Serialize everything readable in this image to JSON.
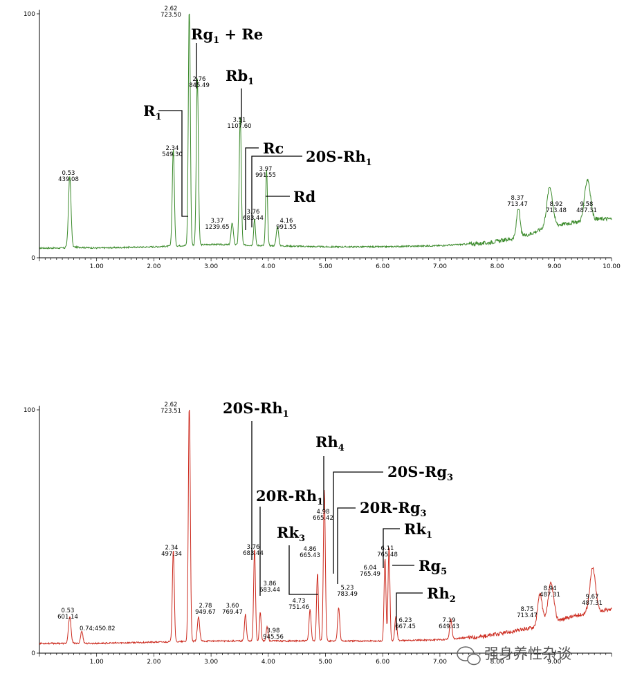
{
  "chart_data": [
    {
      "type": "line",
      "title": "",
      "xlabel": "",
      "ylabel": "",
      "color": "#3a8a2a",
      "xlim": [
        0,
        10
      ],
      "ylim": [
        0,
        100
      ],
      "y_ticks": [
        {
          "v": 0,
          "label": "0"
        },
        {
          "v": 100,
          "label": "100"
        }
      ],
      "x_ticks": [
        {
          "v": 1,
          "label": "1.00"
        },
        {
          "v": 2,
          "label": "2.00"
        },
        {
          "v": 3,
          "label": "3.00"
        },
        {
          "v": 4,
          "label": "4.00"
        },
        {
          "v": 5,
          "label": "5.00"
        },
        {
          "v": 6,
          "label": "6.00"
        },
        {
          "v": 7,
          "label": "7.00"
        },
        {
          "v": 8,
          "label": "8.00"
        },
        {
          "v": 9,
          "label": "9.00"
        },
        {
          "v": 10,
          "label": "10.00"
        }
      ],
      "baseline": [
        [
          0,
          4
        ],
        [
          0.5,
          4.5
        ],
        [
          1,
          4
        ],
        [
          2,
          4.5
        ],
        [
          2.5,
          5
        ],
        [
          3,
          5.5
        ],
        [
          4,
          5
        ],
        [
          5,
          4.5
        ],
        [
          6,
          4.5
        ],
        [
          7,
          5
        ],
        [
          7.8,
          6
        ],
        [
          8.3,
          8
        ],
        [
          8.6,
          10
        ],
        [
          8.9,
          13
        ],
        [
          9.2,
          14
        ],
        [
          9.5,
          15
        ],
        [
          9.8,
          16
        ],
        [
          10,
          16
        ]
      ],
      "peaks": [
        {
          "rt": 0.53,
          "mz": "439.08",
          "rt_label": "0.53",
          "h": 29,
          "w": 0.022
        },
        {
          "rt": 2.34,
          "mz": "549.30",
          "rt_label": "2.34",
          "h": 40,
          "w": 0.018
        },
        {
          "rt": 2.62,
          "mz": "723.50",
          "rt_label": "2.62",
          "h": 100,
          "w": 0.017
        },
        {
          "rt": 2.76,
          "mz": "845.49",
          "rt_label": "2.76",
          "h": 69,
          "w": 0.018
        },
        {
          "rt": 3.37,
          "mz": "1239.65",
          "rt_label": "3.37",
          "h": 9,
          "w": 0.02
        },
        {
          "rt": 3.51,
          "mz": "1107.60",
          "rt_label": "3.51",
          "h": 53,
          "w": 0.018
        },
        {
          "rt": 3.76,
          "mz": "683.44",
          "rt_label": "3.76",
          "h": 11,
          "w": 0.015
        },
        {
          "rt": 3.97,
          "mz": "991.55",
          "rt_label": "3.97",
          "h": 31,
          "w": 0.016
        },
        {
          "rt": 4.16,
          "mz": "991.55",
          "rt_label": "4.16",
          "h": 8,
          "w": 0.02
        },
        {
          "rt": 8.37,
          "mz": "713.47",
          "rt_label": "8.37",
          "h": 12,
          "w": 0.03
        },
        {
          "rt": 8.92,
          "mz": "713.48",
          "rt_label": "8.92",
          "h": 16,
          "w": 0.05
        },
        {
          "rt": 9.58,
          "mz": "487.31",
          "rt_label": "9.58",
          "h": 17,
          "w": 0.05
        }
      ],
      "compounds": [
        {
          "name": "R",
          "sub": "1"
        },
        {
          "name": "Rg",
          "sub": "1",
          "suffix": " + Re"
        },
        {
          "name": "Rb",
          "sub": "1"
        },
        {
          "name": "Rc"
        },
        {
          "name": "20S-Rh",
          "sub": "1"
        },
        {
          "name": "Rd"
        }
      ]
    },
    {
      "type": "line",
      "title": "",
      "xlabel": "",
      "ylabel": "",
      "color": "#cc2a1e",
      "xlim": [
        0,
        10
      ],
      "ylim": [
        0,
        100
      ],
      "y_ticks": [
        {
          "v": 0,
          "label": "0"
        },
        {
          "v": 100,
          "label": "100"
        }
      ],
      "x_ticks": [
        {
          "v": 1,
          "label": "1.00"
        },
        {
          "v": 2,
          "label": "2.00"
        },
        {
          "v": 3,
          "label": "3.00"
        },
        {
          "v": 4,
          "label": "4.00"
        },
        {
          "v": 5,
          "label": "5.00"
        },
        {
          "v": 6,
          "label": "6.00"
        },
        {
          "v": 7,
          "label": "7.00"
        },
        {
          "v": 8,
          "label": "8.00"
        },
        {
          "v": 9,
          "label": "9.00"
        }
      ],
      "baseline": [
        [
          0,
          4
        ],
        [
          1,
          4
        ],
        [
          2,
          4.5
        ],
        [
          3,
          5
        ],
        [
          4,
          5
        ],
        [
          5,
          5
        ],
        [
          6,
          5
        ],
        [
          7,
          5.5
        ],
        [
          7.8,
          7
        ],
        [
          8.3,
          9
        ],
        [
          8.7,
          11
        ],
        [
          9,
          13
        ],
        [
          9.3,
          15
        ],
        [
          9.7,
          17
        ],
        [
          10,
          18
        ]
      ],
      "peaks": [
        {
          "rt": 0.53,
          "mz": "601.14",
          "rt_label": "0.53",
          "h": 11,
          "w": 0.022
        },
        {
          "rt": 0.74,
          "mz": "450.82",
          "rt_label": "0.74",
          "h": 5,
          "w": 0.02
        },
        {
          "rt": 2.34,
          "mz": "497.34",
          "rt_label": "2.34",
          "h": 38,
          "w": 0.017
        },
        {
          "rt": 2.62,
          "mz": "723.51",
          "rt_label": "2.62",
          "h": 100,
          "w": 0.017
        },
        {
          "rt": 2.78,
          "mz": "949.67",
          "rt_label": "2.78",
          "h": 10,
          "w": 0.02
        },
        {
          "rt": 3.6,
          "mz": "769.47",
          "rt_label": "3.60",
          "h": 11,
          "w": 0.017
        },
        {
          "rt": 3.76,
          "mz": "683.44",
          "rt_label": "3.76",
          "h": 38,
          "w": 0.016
        },
        {
          "rt": 3.86,
          "mz": "683.44",
          "rt_label": "3.86",
          "h": 12,
          "w": 0.015
        },
        {
          "rt": 3.98,
          "mz": "945.56",
          "rt_label": "3.98",
          "h": 6,
          "w": 0.016
        },
        {
          "rt": 4.73,
          "mz": "751.46",
          "rt_label": "4.73",
          "h": 13,
          "w": 0.018
        },
        {
          "rt": 4.86,
          "mz": "665.43",
          "rt_label": "4.86",
          "h": 28,
          "w": 0.016
        },
        {
          "rt": 4.98,
          "mz": "665.42",
          "rt_label": "4.98",
          "h": 62,
          "w": 0.017
        },
        {
          "rt": 5.23,
          "mz": "783.49",
          "rt_label": "5.23",
          "h": 14,
          "w": 0.018
        },
        {
          "rt": 6.04,
          "mz": "765.49",
          "rt_label": "6.04",
          "h": 34,
          "w": 0.016
        },
        {
          "rt": 6.11,
          "mz": "765.48",
          "rt_label": "6.11",
          "h": 39,
          "w": 0.016
        },
        {
          "rt": 6.23,
          "mz": "667.45",
          "rt_label": "6.23",
          "h": 10,
          "w": 0.018
        },
        {
          "rt": 7.19,
          "mz": "649.43",
          "rt_label": "7.19",
          "h": 8,
          "w": 0.02
        },
        {
          "rt": 8.75,
          "mz": "713.47",
          "rt_label": "8.75",
          "h": 13,
          "w": 0.04
        },
        {
          "rt": 8.94,
          "mz": "487.31",
          "rt_label": "8.94",
          "h": 16,
          "w": 0.05
        },
        {
          "rt": 9.67,
          "mz": "487.31",
          "rt_label": "9.67",
          "h": 18,
          "w": 0.05
        }
      ],
      "compounds": [
        {
          "name": "20S-Rh",
          "sub": "1"
        },
        {
          "name": "Rh",
          "sub": "4"
        },
        {
          "name": "20S-Rg",
          "sub": "3"
        },
        {
          "name": "20R-Rh",
          "sub": "1"
        },
        {
          "name": "20R-Rg",
          "sub": "3"
        },
        {
          "name": "Rk",
          "sub": "3"
        },
        {
          "name": "Rk",
          "sub": "1"
        },
        {
          "name": "Rg",
          "sub": "5"
        },
        {
          "name": "Rh",
          "sub": "2"
        }
      ]
    }
  ],
  "watermark": {
    "text": "强身养性杂谈",
    "icon": "wechat-icon"
  }
}
